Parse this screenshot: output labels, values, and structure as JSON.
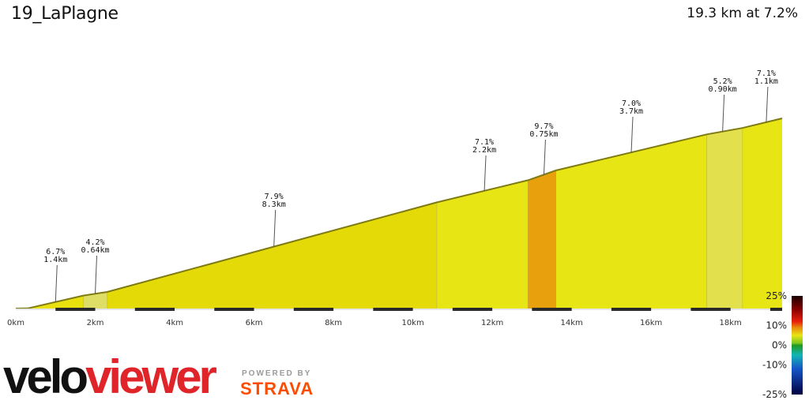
{
  "header": {
    "title": "19_LaPlagne",
    "summary": "19.3 km at 7.2%"
  },
  "branding": {
    "velo": "velo",
    "viewer": "viewer",
    "powered_by": "POWERED BY",
    "strava": "STRAVA"
  },
  "chart_data": {
    "type": "area",
    "title": "19_LaPlagne",
    "x_unit": "km",
    "xlim": [
      0,
      19.3
    ],
    "x_ticks": [
      "0km",
      "2km",
      "4km",
      "6km",
      "8km",
      "10km",
      "12km",
      "14km",
      "16km",
      "18km"
    ],
    "profile": [
      {
        "x": 0.0,
        "y": 0
      },
      {
        "x": 0.3,
        "y": 1
      },
      {
        "x": 1.7,
        "y": 95
      },
      {
        "x": 2.3,
        "y": 122
      },
      {
        "x": 10.6,
        "y": 780
      },
      {
        "x": 12.9,
        "y": 943
      },
      {
        "x": 13.6,
        "y": 1015
      },
      {
        "x": 17.4,
        "y": 1280
      },
      {
        "x": 18.3,
        "y": 1327
      },
      {
        "x": 19.3,
        "y": 1398
      }
    ],
    "segments": [
      {
        "x0": 0.0,
        "x1": 0.3,
        "color": "#1f9a1f"
      },
      {
        "x0": 0.3,
        "x1": 1.7,
        "color": "#e8e10e"
      },
      {
        "x0": 1.7,
        "x1": 2.3,
        "color": "#dede66"
      },
      {
        "x0": 2.3,
        "x1": 10.6,
        "color": "#e3da08"
      },
      {
        "x0": 10.6,
        "x1": 12.9,
        "color": "#e8e514"
      },
      {
        "x0": 12.9,
        "x1": 13.6,
        "color": "#e8a00c"
      },
      {
        "x0": 13.6,
        "x1": 17.4,
        "color": "#e8e514"
      },
      {
        "x0": 17.4,
        "x1": 18.3,
        "color": "#e3e04e"
      },
      {
        "x0": 18.3,
        "x1": 19.3,
        "color": "#e8e514"
      }
    ],
    "annotations": [
      {
        "x": 1.0,
        "grade": "6.7%",
        "length": "1.4km"
      },
      {
        "x": 2.0,
        "grade": "4.2%",
        "length": "0.64km"
      },
      {
        "x": 6.5,
        "grade": "7.9%",
        "length": "8.3km"
      },
      {
        "x": 11.8,
        "grade": "7.1%",
        "length": "2.2km"
      },
      {
        "x": 13.3,
        "grade": "9.7%",
        "length": "0.75km"
      },
      {
        "x": 15.5,
        "grade": "7.0%",
        "length": "3.7km"
      },
      {
        "x": 17.8,
        "grade": "5.2%",
        "length": "0.90km"
      },
      {
        "x": 18.9,
        "grade": "7.1%",
        "length": "1.1km"
      }
    ],
    "gradient_scale": {
      "labels": [
        "25%",
        "10%",
        "0%",
        "-10%",
        "-25%"
      ],
      "values": [
        25,
        10,
        0,
        -10,
        -25
      ],
      "stops": [
        {
          "value": 25,
          "color": "#1a0000"
        },
        {
          "value": 18,
          "color": "#8b0000"
        },
        {
          "value": 12,
          "color": "#e8200c"
        },
        {
          "value": 9,
          "color": "#e88a0c"
        },
        {
          "value": 5,
          "color": "#e8e514"
        },
        {
          "value": 1,
          "color": "#7ac520"
        },
        {
          "value": 0,
          "color": "#1f9a1f"
        },
        {
          "value": -5,
          "color": "#13b5b5"
        },
        {
          "value": -12,
          "color": "#1555c8"
        },
        {
          "value": -25,
          "color": "#000040"
        }
      ]
    }
  }
}
